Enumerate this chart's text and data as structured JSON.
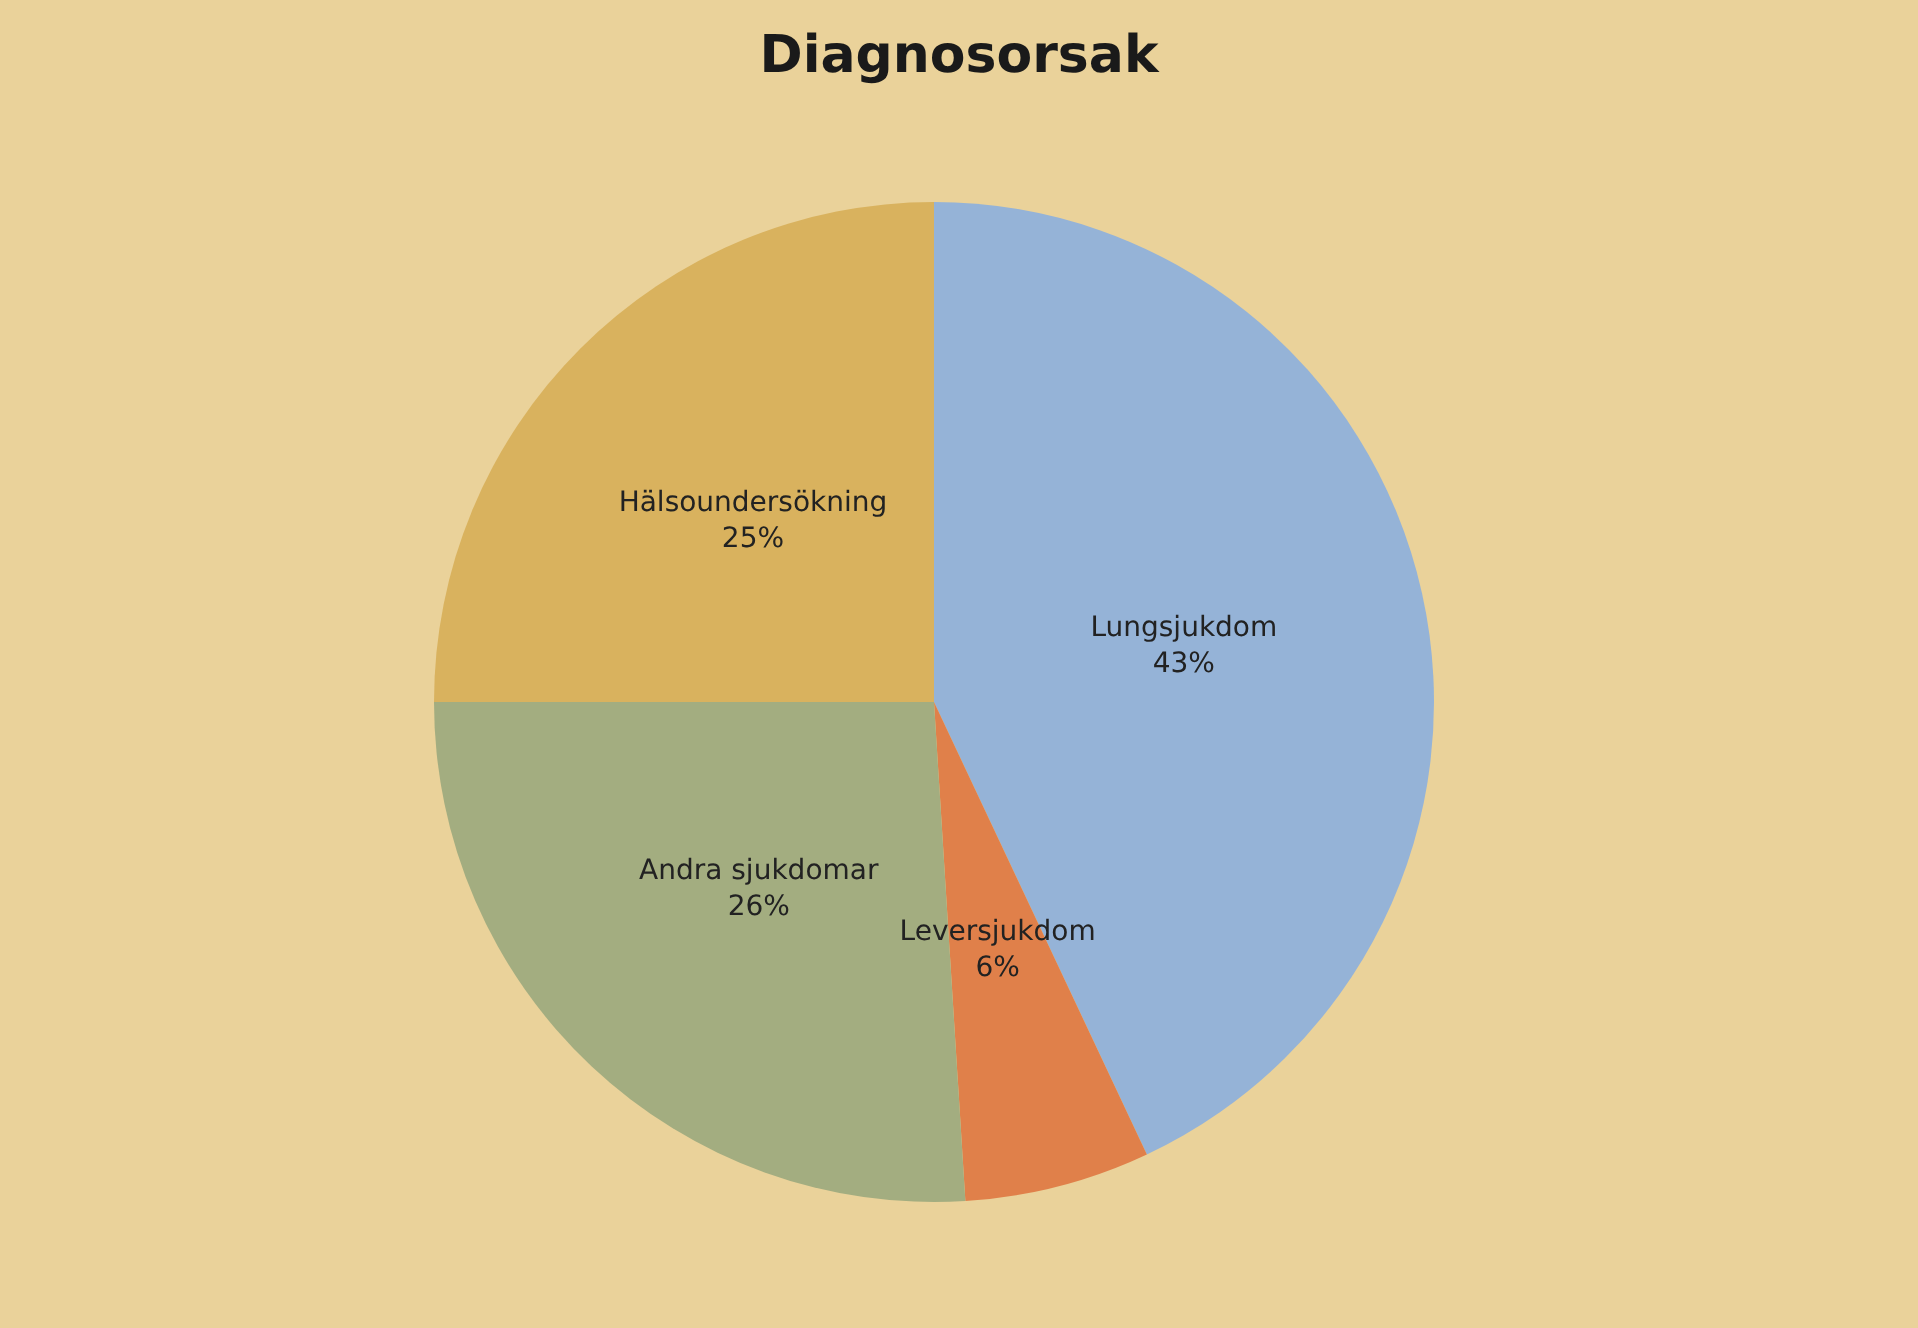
{
  "chart_data": {
    "type": "pie",
    "title": "Diagnosorsak",
    "categories": [
      "Lungsjukdom",
      "Leversjukdom",
      "Andra sjukdomar",
      "Hälsoundersökning"
    ],
    "values": [
      43,
      6,
      26,
      25
    ],
    "colors": [
      "#95b3d7",
      "#e0804a",
      "#a3ad80",
      "#d9b25e"
    ],
    "value_labels": [
      "43%",
      "6%",
      "26%",
      "25%"
    ],
    "legend": false
  }
}
